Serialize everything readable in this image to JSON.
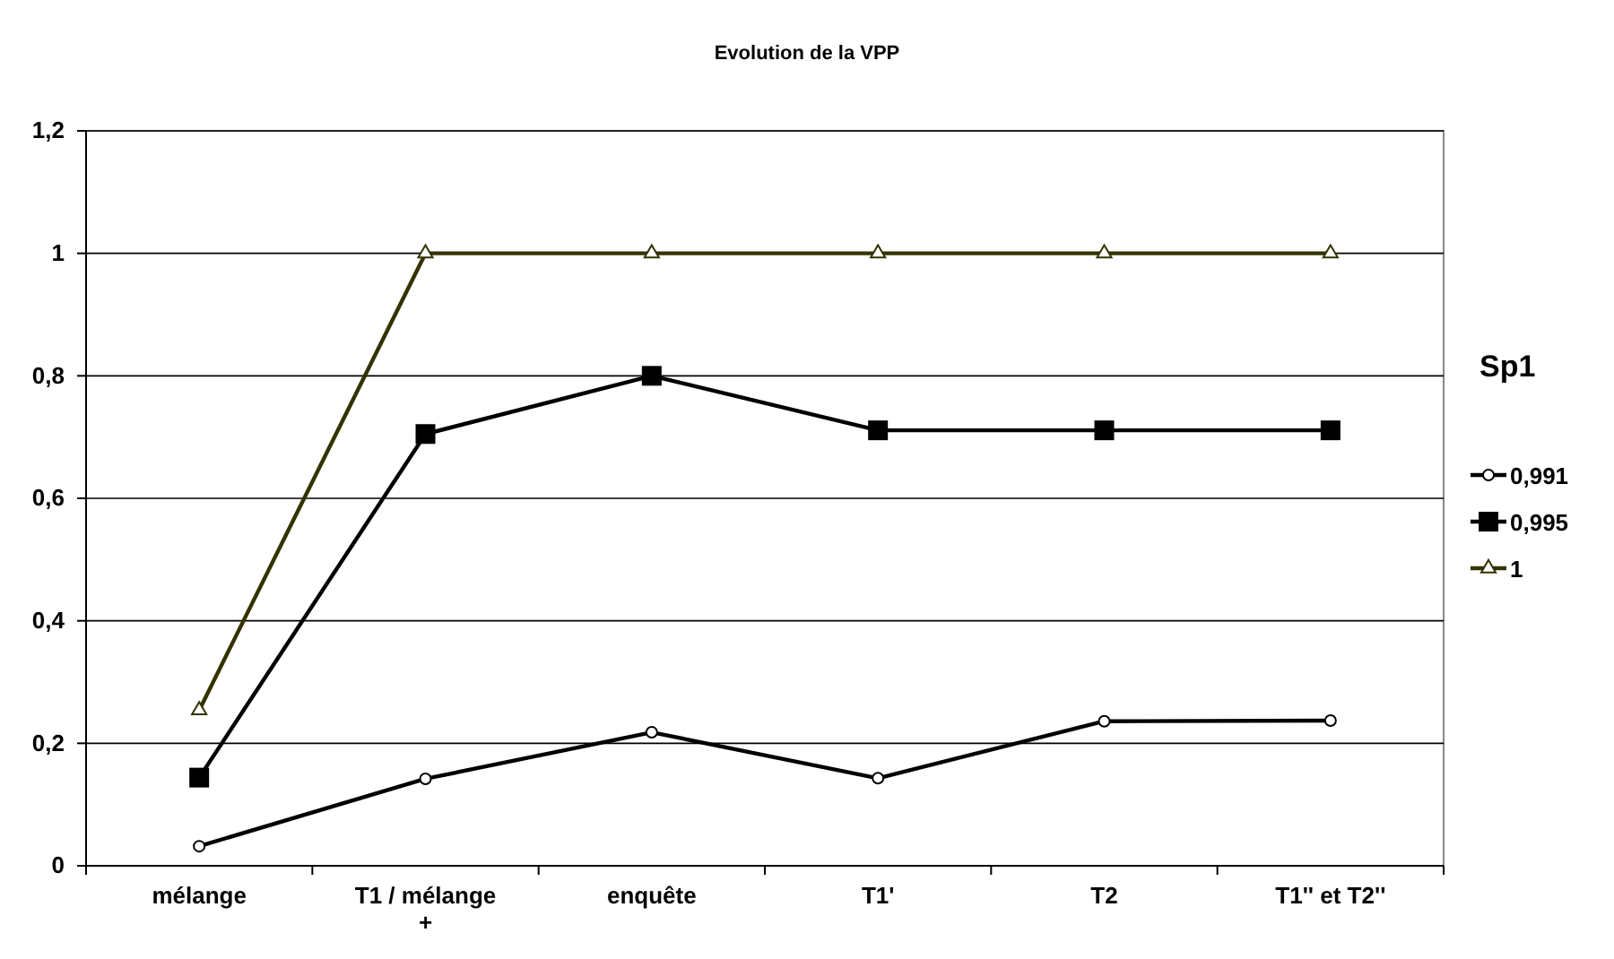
{
  "chart_data": {
    "type": "line",
    "title": "Evolution de la VPP",
    "legend_title": "Sp1",
    "categories": [
      "mélange",
      "T1 / mélange +",
      "enquête",
      "T1'",
      "T2",
      "T1'' et T2''"
    ],
    "series": [
      {
        "name": "0,991",
        "color": "#000000",
        "marker": "circle",
        "values": [
          0.032,
          0.142,
          0.218,
          0.143,
          0.236,
          0.237
        ]
      },
      {
        "name": "0,995",
        "color": "#000000",
        "marker": "square",
        "values": [
          0.144,
          0.705,
          0.8,
          0.711,
          0.711,
          0.711
        ]
      },
      {
        "name": "1",
        "color": "#333300",
        "marker": "triangle",
        "values": [
          0.254,
          1,
          1,
          1,
          1,
          1
        ]
      }
    ],
    "ylim": [
      0,
      1.2
    ],
    "yticks": [
      {
        "value": 0,
        "label": "0"
      },
      {
        "value": 0.2,
        "label": "0,2"
      },
      {
        "value": 0.4,
        "label": "0,4"
      },
      {
        "value": 0.6,
        "label": "0,6"
      },
      {
        "value": 0.8,
        "label": "0,8"
      },
      {
        "value": 1,
        "label": "1"
      },
      {
        "value": 1.2,
        "label": "1,2"
      }
    ],
    "grid": "y",
    "legend": "right",
    "line_style": "solid"
  }
}
